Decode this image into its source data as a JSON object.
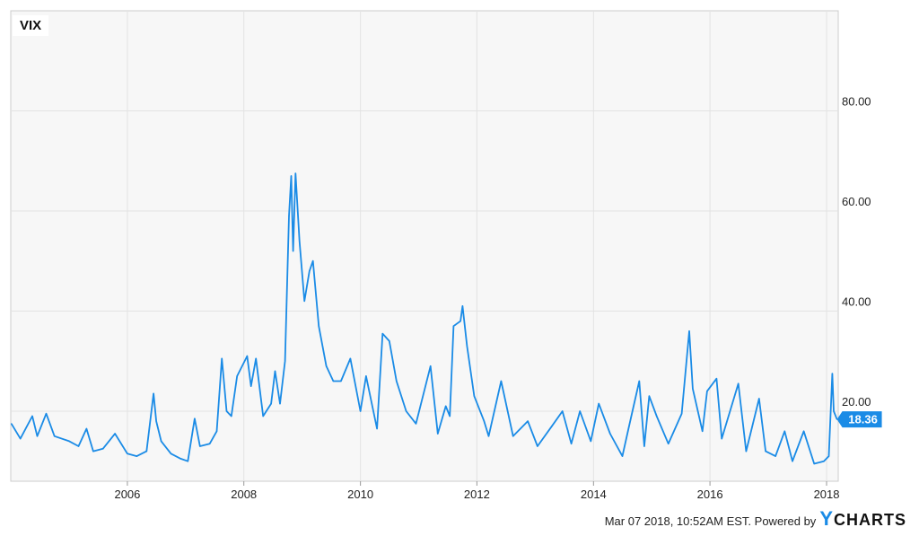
{
  "chart_data": {
    "type": "line",
    "title": "VIX",
    "series": [
      {
        "name": "VIX",
        "color": "#1a8be6",
        "points": [
          [
            "2004-01-05",
            17.5
          ],
          [
            "2004-03-01",
            14.5
          ],
          [
            "2004-05-15",
            19.0
          ],
          [
            "2004-06-15",
            15.0
          ],
          [
            "2004-08-10",
            19.5
          ],
          [
            "2004-10-01",
            15.0
          ],
          [
            "2005-01-01",
            14.0
          ],
          [
            "2005-03-01",
            13.0
          ],
          [
            "2005-04-20",
            16.5
          ],
          [
            "2005-06-01",
            12.0
          ],
          [
            "2005-08-01",
            12.5
          ],
          [
            "2005-10-15",
            15.5
          ],
          [
            "2006-01-01",
            11.5
          ],
          [
            "2006-03-01",
            11.0
          ],
          [
            "2006-05-01",
            12.0
          ],
          [
            "2006-06-14",
            23.5
          ],
          [
            "2006-07-01",
            18.0
          ],
          [
            "2006-08-01",
            14.0
          ],
          [
            "2006-10-01",
            11.5
          ],
          [
            "2006-12-01",
            10.5
          ],
          [
            "2007-01-15",
            10.0
          ],
          [
            "2007-02-27",
            18.5
          ],
          [
            "2007-04-01",
            13.0
          ],
          [
            "2007-06-01",
            13.5
          ],
          [
            "2007-07-15",
            16.0
          ],
          [
            "2007-08-16",
            30.5
          ],
          [
            "2007-09-15",
            20.0
          ],
          [
            "2007-10-15",
            19.0
          ],
          [
            "2007-11-20",
            27.0
          ],
          [
            "2008-01-22",
            31.0
          ],
          [
            "2008-02-15",
            25.0
          ],
          [
            "2008-03-17",
            30.5
          ],
          [
            "2008-05-01",
            19.0
          ],
          [
            "2008-06-20",
            21.5
          ],
          [
            "2008-07-15",
            28.0
          ],
          [
            "2008-08-15",
            21.5
          ],
          [
            "2008-09-15",
            30.0
          ],
          [
            "2008-10-10",
            59.0
          ],
          [
            "2008-10-24",
            67.0
          ],
          [
            "2008-11-05",
            52.0
          ],
          [
            "2008-11-20",
            67.5
          ],
          [
            "2008-12-15",
            54.0
          ],
          [
            "2009-01-15",
            42.0
          ],
          [
            "2009-02-15",
            48.0
          ],
          [
            "2009-03-09",
            50.0
          ],
          [
            "2009-04-15",
            37.0
          ],
          [
            "2009-06-01",
            29.0
          ],
          [
            "2009-07-15",
            26.0
          ],
          [
            "2009-09-01",
            26.0
          ],
          [
            "2009-10-30",
            30.5
          ],
          [
            "2010-01-01",
            20.0
          ],
          [
            "2010-02-05",
            27.0
          ],
          [
            "2010-04-15",
            16.5
          ],
          [
            "2010-05-20",
            35.5
          ],
          [
            "2010-07-01",
            34.0
          ],
          [
            "2010-08-15",
            26.0
          ],
          [
            "2010-10-15",
            20.0
          ],
          [
            "2010-12-15",
            17.5
          ],
          [
            "2011-03-16",
            29.0
          ],
          [
            "2011-05-01",
            15.5
          ],
          [
            "2011-06-20",
            21.0
          ],
          [
            "2011-07-15",
            19.0
          ],
          [
            "2011-08-08",
            37.0
          ],
          [
            "2011-09-20",
            38.0
          ],
          [
            "2011-10-03",
            41.0
          ],
          [
            "2011-10-31",
            33.0
          ],
          [
            "2011-12-15",
            23.0
          ],
          [
            "2012-02-15",
            18.0
          ],
          [
            "2012-03-15",
            15.0
          ],
          [
            "2012-06-01",
            26.0
          ],
          [
            "2012-08-15",
            15.0
          ],
          [
            "2012-11-15",
            18.0
          ],
          [
            "2013-01-15",
            13.0
          ],
          [
            "2013-04-15",
            17.0
          ],
          [
            "2013-06-20",
            20.0
          ],
          [
            "2013-08-15",
            13.5
          ],
          [
            "2013-10-08",
            20.0
          ],
          [
            "2013-12-15",
            14.0
          ],
          [
            "2014-02-03",
            21.5
          ],
          [
            "2014-04-15",
            15.5
          ],
          [
            "2014-07-01",
            11.0
          ],
          [
            "2014-08-08",
            16.5
          ],
          [
            "2014-10-15",
            26.0
          ],
          [
            "2014-11-15",
            13.0
          ],
          [
            "2014-12-16",
            23.0
          ],
          [
            "2015-02-01",
            19.0
          ],
          [
            "2015-04-15",
            13.5
          ],
          [
            "2015-07-08",
            19.5
          ],
          [
            "2015-08-24",
            36.0
          ],
          [
            "2015-09-15",
            24.5
          ],
          [
            "2015-11-15",
            16.0
          ],
          [
            "2015-12-14",
            24.0
          ],
          [
            "2016-02-11",
            26.5
          ],
          [
            "2016-03-15",
            14.5
          ],
          [
            "2016-06-27",
            25.5
          ],
          [
            "2016-08-15",
            12.0
          ],
          [
            "2016-11-04",
            22.5
          ],
          [
            "2016-12-15",
            12.0
          ],
          [
            "2017-02-15",
            11.0
          ],
          [
            "2017-04-13",
            16.0
          ],
          [
            "2017-06-01",
            10.0
          ],
          [
            "2017-08-11",
            16.0
          ],
          [
            "2017-10-15",
            9.5
          ],
          [
            "2017-12-15",
            10.0
          ],
          [
            "2018-01-15",
            11.0
          ],
          [
            "2018-02-06",
            27.5
          ],
          [
            "2018-02-15",
            20.0
          ],
          [
            "2018-03-07",
            18.36
          ]
        ]
      }
    ],
    "x_ticks": [
      "2006",
      "2008",
      "2010",
      "2012",
      "2014",
      "2016",
      "2018"
    ],
    "y_ticks": [
      "20.00",
      "40.00",
      "60.00",
      "80.00"
    ],
    "xlim": [
      "2004-01-01",
      "2018-03-15"
    ],
    "ylim": [
      6,
      100
    ],
    "y_axis_side": "right",
    "grid": true,
    "legend_placement": "top-left",
    "last_value_label": "18.36"
  },
  "footer": {
    "timestamp": "Mar 07 2018, 10:52AM EST.",
    "powered_by": "Powered by",
    "brand_first": "Y",
    "brand_rest": "CHARTS"
  },
  "colors": {
    "line": "#1a8be6",
    "plot_bg": "#f7f7f7",
    "grid": "#e3e3e3",
    "border": "#cccccc"
  }
}
